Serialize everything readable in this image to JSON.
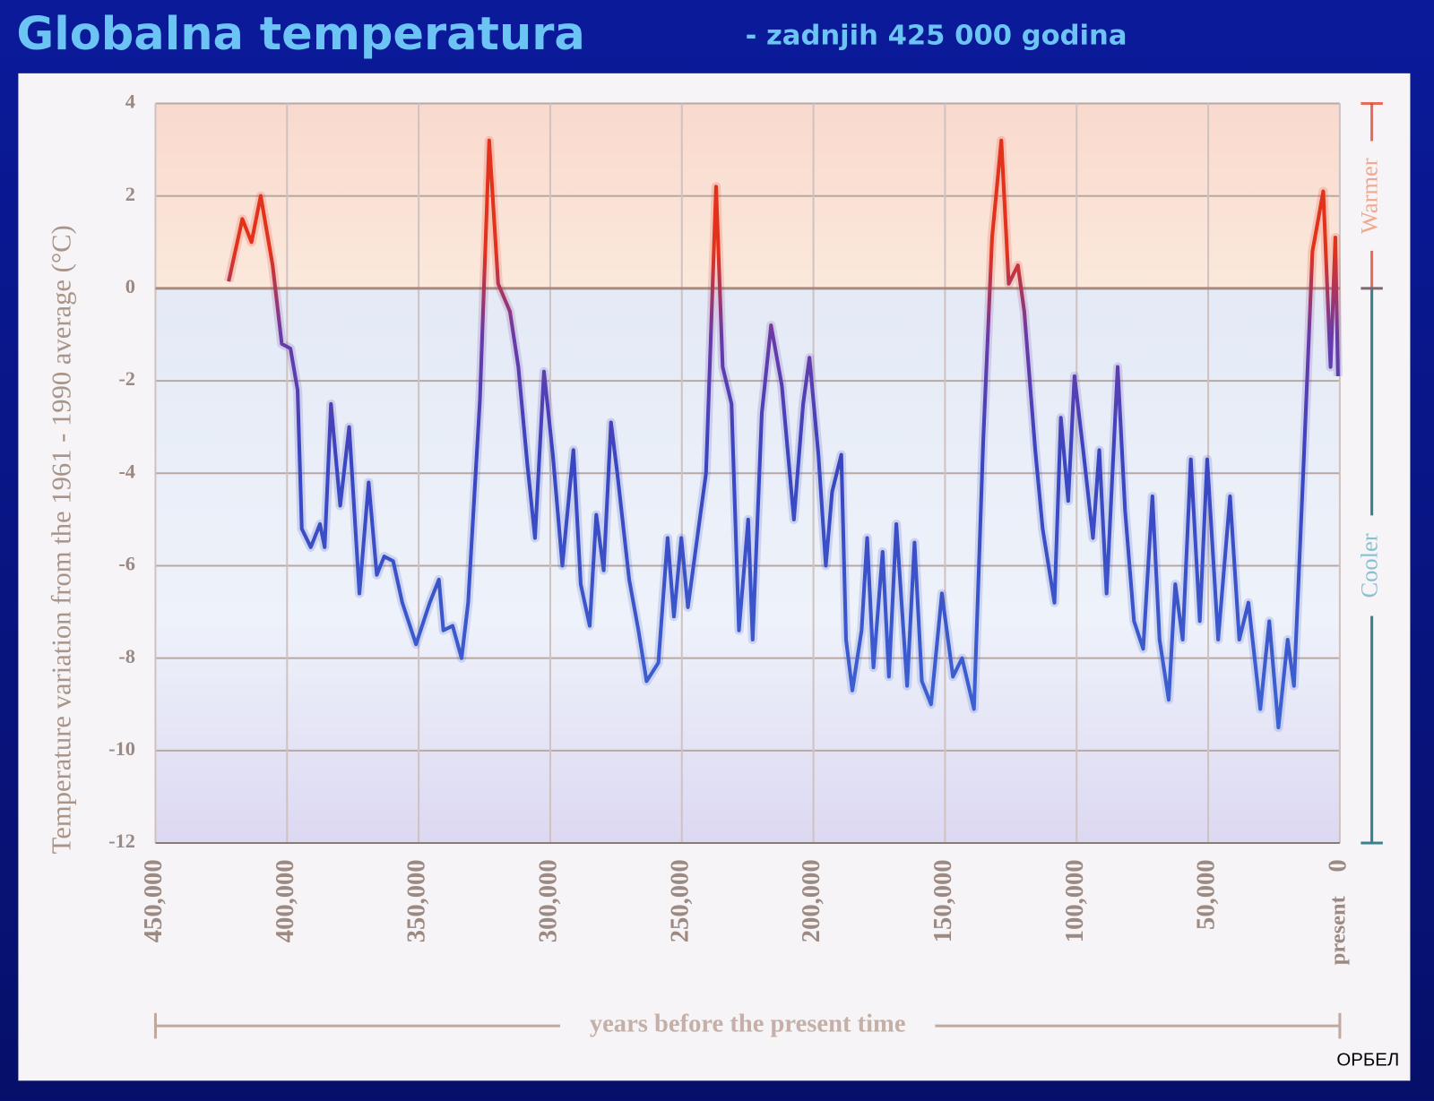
{
  "chart_data": {
    "type": "line",
    "title": "Globalna temperatura",
    "subtitle": "- zadnjih 425 000 godina",
    "ylabel": "Temperature variation from the 1961 - 1990 average (°C)",
    "xlabel": "years before the present time",
    "annotations": {
      "warmer": "Warmer",
      "cooler": "Cooler",
      "present": "present",
      "watermark": "ОРБЕЛ"
    },
    "xlim": [
      450000,
      0
    ],
    "ylim": [
      -12,
      4
    ],
    "yticks": [
      -12,
      -10,
      -8,
      -6,
      -4,
      -2,
      0,
      2,
      4
    ],
    "xticks": [
      {
        "value": 450000,
        "label": "450,000"
      },
      {
        "value": 400000,
        "label": "400,000"
      },
      {
        "value": 350000,
        "label": "350,000"
      },
      {
        "value": 300000,
        "label": "300,000"
      },
      {
        "value": 250000,
        "label": "250,000"
      },
      {
        "value": 200000,
        "label": "200,000"
      },
      {
        "value": 150000,
        "label": "150,000"
      },
      {
        "value": 100000,
        "label": "100,000"
      },
      {
        "value": 50000,
        "label": "50,000"
      },
      0
    ],
    "grid": true,
    "color_warm": "#e2321c",
    "color_cool": "#3d6fdc",
    "x": [
      422200,
      417000,
      413500,
      410000,
      405500,
      402000,
      398700,
      396000,
      394400,
      391000,
      387500,
      385700,
      383300,
      379800,
      376400,
      372500,
      369000,
      365900,
      363100,
      359700,
      356200,
      351000,
      345800,
      342300,
      340600,
      337100,
      333700,
      331200,
      326700,
      323200,
      319800,
      315300,
      312100,
      308700,
      305800,
      302400,
      299000,
      295400,
      291200,
      288400,
      285000,
      282500,
      279700,
      276900,
      274500,
      270000,
      266500,
      263400,
      258900,
      255400,
      253000,
      250200,
      247700,
      243200,
      240800,
      237000,
      234500,
      231100,
      228300,
      224800,
      223100,
      219600,
      216100,
      212000,
      207400,
      203900,
      201500,
      198100,
      195300,
      192900,
      189400,
      187600,
      185200,
      181700,
      179600,
      177200,
      173700,
      171300,
      168500,
      164400,
      161600,
      158800,
      155300,
      151200,
      147000,
      143500,
      139000,
      135500,
      132100,
      128600,
      125800,
      122300,
      119900,
      115700,
      112900,
      108400,
      106000,
      103200,
      100800,
      97300,
      93800,
      91400,
      88600,
      84400,
      81600,
      78200,
      74700,
      71200,
      68500,
      65000,
      62500,
      59700,
      56600,
      53200,
      50400,
      46200,
      41700,
      38200,
      34700,
      30200,
      26800,
      23300,
      19800,
      17400,
      13900,
      10400,
      6300,
      3500,
      1700,
      700
    ],
    "values": [
      0.15,
      1.5,
      1.0,
      2.0,
      0.5,
      -1.2,
      -1.3,
      -2.2,
      -5.2,
      -5.6,
      -5.1,
      -5.6,
      -2.5,
      -4.7,
      -3.0,
      -6.6,
      -4.2,
      -6.2,
      -5.8,
      -5.9,
      -6.8,
      -7.7,
      -6.8,
      -6.3,
      -7.4,
      -7.3,
      -8.0,
      -6.8,
      -2.4,
      3.2,
      0.1,
      -0.5,
      -1.7,
      -3.8,
      -5.4,
      -1.8,
      -3.6,
      -6.0,
      -3.5,
      -6.4,
      -7.3,
      -4.9,
      -6.1,
      -2.9,
      -4.0,
      -6.3,
      -7.4,
      -8.5,
      -8.1,
      -5.4,
      -7.1,
      -5.4,
      -6.9,
      -5.0,
      -4.0,
      2.2,
      -1.7,
      -2.5,
      -7.4,
      -5.0,
      -7.6,
      -2.7,
      -0.8,
      -2.1,
      -5.0,
      -2.5,
      -1.5,
      -3.6,
      -6.0,
      -4.4,
      -3.6,
      -7.6,
      -8.7,
      -7.4,
      -5.4,
      -8.2,
      -5.7,
      -8.4,
      -5.1,
      -8.6,
      -5.5,
      -8.5,
      -9.0,
      -6.6,
      -8.4,
      -8.0,
      -9.1,
      -3.3,
      1.1,
      3.2,
      0.1,
      0.5,
      -0.5,
      -3.5,
      -5.2,
      -6.8,
      -2.8,
      -4.6,
      -1.9,
      -3.6,
      -5.4,
      -3.5,
      -6.6,
      -1.7,
      -4.8,
      -7.2,
      -7.8,
      -4.5,
      -7.6,
      -8.9,
      -6.4,
      -7.6,
      -3.7,
      -7.2,
      -3.7,
      -7.6,
      -4.5,
      -7.6,
      -6.8,
      -9.1,
      -7.2,
      -9.5,
      -7.6,
      -8.6,
      -4.0,
      0.8,
      2.1,
      -1.7,
      1.1,
      -1.9
    ]
  }
}
